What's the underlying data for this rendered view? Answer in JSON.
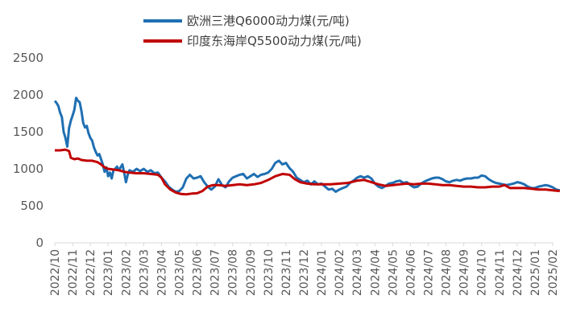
{
  "chart_data": {
    "type": "line",
    "title": "",
    "xlabel": "",
    "ylabel": "",
    "ylim": [
      0,
      2500
    ],
    "yticks": [
      0,
      500,
      1000,
      1500,
      2000,
      2500
    ],
    "grid": false,
    "legend": "top-center",
    "categories": [
      "2022/10",
      "2022/11",
      "2022/12",
      "2023/01",
      "2023/02",
      "2023/03",
      "2023/04",
      "2023/05",
      "2023/06",
      "2023/07",
      "2023/08",
      "2023/09",
      "2023/10",
      "2023/11",
      "2023/12",
      "2024/01",
      "2024/02",
      "2024/03",
      "2024/04",
      "2024/05",
      "2024/06",
      "2024/07",
      "2024/08",
      "2024/09",
      "2024/10",
      "2024/11",
      "2024/12",
      "2025/01",
      "2025/02"
    ],
    "series": [
      {
        "name": "欧洲三港Q6000动力煤(元/吨)",
        "color": "#1f6fb2",
        "points": [
          [
            0.0,
            1920
          ],
          [
            0.1,
            1890
          ],
          [
            0.2,
            1850
          ],
          [
            0.3,
            1760
          ],
          [
            0.4,
            1700
          ],
          [
            0.5,
            1500
          ],
          [
            0.6,
            1420
          ],
          [
            0.7,
            1300
          ],
          [
            0.8,
            1550
          ],
          [
            0.9,
            1650
          ],
          [
            1.0,
            1720
          ],
          [
            1.1,
            1800
          ],
          [
            1.2,
            1960
          ],
          [
            1.3,
            1920
          ],
          [
            1.4,
            1900
          ],
          [
            1.5,
            1780
          ],
          [
            1.6,
            1620
          ],
          [
            1.7,
            1560
          ],
          [
            1.8,
            1580
          ],
          [
            1.9,
            1480
          ],
          [
            2.0,
            1420
          ],
          [
            2.1,
            1380
          ],
          [
            2.2,
            1290
          ],
          [
            2.3,
            1230
          ],
          [
            2.4,
            1180
          ],
          [
            2.5,
            1200
          ],
          [
            2.6,
            1130
          ],
          [
            2.7,
            1060
          ],
          [
            2.8,
            960
          ],
          [
            2.9,
            1020
          ],
          [
            3.0,
            900
          ],
          [
            3.1,
            950
          ],
          [
            3.2,
            870
          ],
          [
            3.3,
            980
          ],
          [
            3.4,
            1000
          ],
          [
            3.5,
            1030
          ],
          [
            3.6,
            980
          ],
          [
            3.7,
            1020
          ],
          [
            3.8,
            1060
          ],
          [
            3.9,
            950
          ],
          [
            4.0,
            820
          ],
          [
            4.1,
            920
          ],
          [
            4.2,
            980
          ],
          [
            4.4,
            960
          ],
          [
            4.6,
            1000
          ],
          [
            4.8,
            970
          ],
          [
            5.0,
            1000
          ],
          [
            5.2,
            960
          ],
          [
            5.4,
            980
          ],
          [
            5.6,
            940
          ],
          [
            5.8,
            950
          ],
          [
            6.0,
            880
          ],
          [
            6.2,
            830
          ],
          [
            6.4,
            760
          ],
          [
            6.6,
            720
          ],
          [
            6.8,
            690
          ],
          [
            7.0,
            700
          ],
          [
            7.2,
            750
          ],
          [
            7.4,
            870
          ],
          [
            7.6,
            920
          ],
          [
            7.8,
            870
          ],
          [
            8.0,
            880
          ],
          [
            8.2,
            900
          ],
          [
            8.4,
            820
          ],
          [
            8.6,
            760
          ],
          [
            8.8,
            720
          ],
          [
            9.0,
            760
          ],
          [
            9.2,
            860
          ],
          [
            9.4,
            780
          ],
          [
            9.6,
            750
          ],
          [
            9.8,
            830
          ],
          [
            10.0,
            880
          ],
          [
            10.2,
            900
          ],
          [
            10.4,
            920
          ],
          [
            10.6,
            930
          ],
          [
            10.8,
            870
          ],
          [
            11.0,
            900
          ],
          [
            11.2,
            930
          ],
          [
            11.4,
            890
          ],
          [
            11.6,
            920
          ],
          [
            11.8,
            930
          ],
          [
            12.0,
            950
          ],
          [
            12.2,
            1000
          ],
          [
            12.4,
            1080
          ],
          [
            12.6,
            1110
          ],
          [
            12.8,
            1060
          ],
          [
            13.0,
            1080
          ],
          [
            13.2,
            1010
          ],
          [
            13.4,
            960
          ],
          [
            13.6,
            880
          ],
          [
            13.8,
            850
          ],
          [
            14.0,
            820
          ],
          [
            14.2,
            840
          ],
          [
            14.4,
            790
          ],
          [
            14.6,
            830
          ],
          [
            14.8,
            790
          ],
          [
            15.0,
            800
          ],
          [
            15.2,
            760
          ],
          [
            15.4,
            720
          ],
          [
            15.6,
            730
          ],
          [
            15.8,
            690
          ],
          [
            16.0,
            720
          ],
          [
            16.2,
            740
          ],
          [
            16.4,
            760
          ],
          [
            16.6,
            810
          ],
          [
            16.8,
            840
          ],
          [
            17.0,
            880
          ],
          [
            17.2,
            900
          ],
          [
            17.4,
            880
          ],
          [
            17.6,
            900
          ],
          [
            17.8,
            870
          ],
          [
            18.0,
            800
          ],
          [
            18.2,
            760
          ],
          [
            18.4,
            740
          ],
          [
            18.6,
            770
          ],
          [
            18.8,
            800
          ],
          [
            19.0,
            810
          ],
          [
            19.2,
            830
          ],
          [
            19.4,
            840
          ],
          [
            19.6,
            810
          ],
          [
            19.8,
            820
          ],
          [
            20.0,
            780
          ],
          [
            20.2,
            750
          ],
          [
            20.4,
            760
          ],
          [
            20.6,
            800
          ],
          [
            20.8,
            830
          ],
          [
            21.0,
            850
          ],
          [
            21.2,
            870
          ],
          [
            21.4,
            880
          ],
          [
            21.6,
            880
          ],
          [
            21.8,
            860
          ],
          [
            22.0,
            830
          ],
          [
            22.2,
            820
          ],
          [
            22.4,
            840
          ],
          [
            22.6,
            850
          ],
          [
            22.8,
            840
          ],
          [
            23.0,
            860
          ],
          [
            23.2,
            870
          ],
          [
            23.4,
            870
          ],
          [
            23.6,
            880
          ],
          [
            23.8,
            880
          ],
          [
            24.0,
            910
          ],
          [
            24.2,
            900
          ],
          [
            24.4,
            860
          ],
          [
            24.6,
            830
          ],
          [
            24.8,
            810
          ],
          [
            25.0,
            800
          ],
          [
            25.2,
            790
          ],
          [
            25.4,
            780
          ],
          [
            25.6,
            790
          ],
          [
            25.8,
            800
          ],
          [
            26.0,
            820
          ],
          [
            26.2,
            810
          ],
          [
            26.4,
            790
          ],
          [
            26.6,
            760
          ],
          [
            26.8,
            740
          ],
          [
            27.0,
            740
          ],
          [
            27.2,
            760
          ],
          [
            27.4,
            770
          ],
          [
            27.6,
            780
          ],
          [
            27.8,
            770
          ],
          [
            28.0,
            750
          ],
          [
            28.2,
            720
          ],
          [
            28.4,
            710
          ]
        ]
      },
      {
        "name": "印度东海岸Q5500动力煤(元/吨)",
        "color": "#c00000",
        "points": [
          [
            0.0,
            1250
          ],
          [
            0.3,
            1250
          ],
          [
            0.6,
            1260
          ],
          [
            0.8,
            1240
          ],
          [
            0.9,
            1150
          ],
          [
            1.1,
            1130
          ],
          [
            1.3,
            1140
          ],
          [
            1.5,
            1120
          ],
          [
            1.8,
            1110
          ],
          [
            2.1,
            1110
          ],
          [
            2.4,
            1090
          ],
          [
            2.6,
            1060
          ],
          [
            2.8,
            1020
          ],
          [
            3.0,
            1000
          ],
          [
            3.3,
            990
          ],
          [
            3.6,
            980
          ],
          [
            3.9,
            960
          ],
          [
            4.2,
            950
          ],
          [
            4.6,
            940
          ],
          [
            5.0,
            940
          ],
          [
            5.4,
            930
          ],
          [
            5.8,
            920
          ],
          [
            6.0,
            880
          ],
          [
            6.2,
            790
          ],
          [
            6.5,
            720
          ],
          [
            6.8,
            680
          ],
          [
            7.1,
            660
          ],
          [
            7.4,
            655
          ],
          [
            7.7,
            665
          ],
          [
            8.0,
            670
          ],
          [
            8.3,
            700
          ],
          [
            8.6,
            760
          ],
          [
            8.9,
            780
          ],
          [
            9.2,
            780
          ],
          [
            9.6,
            770
          ],
          [
            10.0,
            780
          ],
          [
            10.4,
            790
          ],
          [
            10.8,
            780
          ],
          [
            11.2,
            790
          ],
          [
            11.6,
            810
          ],
          [
            12.0,
            850
          ],
          [
            12.4,
            900
          ],
          [
            12.8,
            930
          ],
          [
            13.2,
            920
          ],
          [
            13.5,
            860
          ],
          [
            13.8,
            820
          ],
          [
            14.2,
            800
          ],
          [
            14.6,
            790
          ],
          [
            15.0,
            790
          ],
          [
            15.5,
            790
          ],
          [
            16.0,
            800
          ],
          [
            16.5,
            810
          ],
          [
            17.0,
            840
          ],
          [
            17.4,
            850
          ],
          [
            17.8,
            820
          ],
          [
            18.2,
            790
          ],
          [
            18.6,
            770
          ],
          [
            19.0,
            780
          ],
          [
            19.4,
            790
          ],
          [
            19.8,
            800
          ],
          [
            20.2,
            790
          ],
          [
            20.6,
            800
          ],
          [
            21.0,
            800
          ],
          [
            21.4,
            790
          ],
          [
            21.8,
            780
          ],
          [
            22.2,
            780
          ],
          [
            22.6,
            770
          ],
          [
            23.0,
            760
          ],
          [
            23.4,
            760
          ],
          [
            23.8,
            750
          ],
          [
            24.2,
            750
          ],
          [
            24.6,
            760
          ],
          [
            25.0,
            760
          ],
          [
            25.3,
            780
          ],
          [
            25.6,
            740
          ],
          [
            26.0,
            740
          ],
          [
            26.4,
            740
          ],
          [
            26.8,
            730
          ],
          [
            27.2,
            720
          ],
          [
            27.6,
            720
          ],
          [
            28.0,
            710
          ],
          [
            28.4,
            700
          ]
        ]
      }
    ]
  }
}
